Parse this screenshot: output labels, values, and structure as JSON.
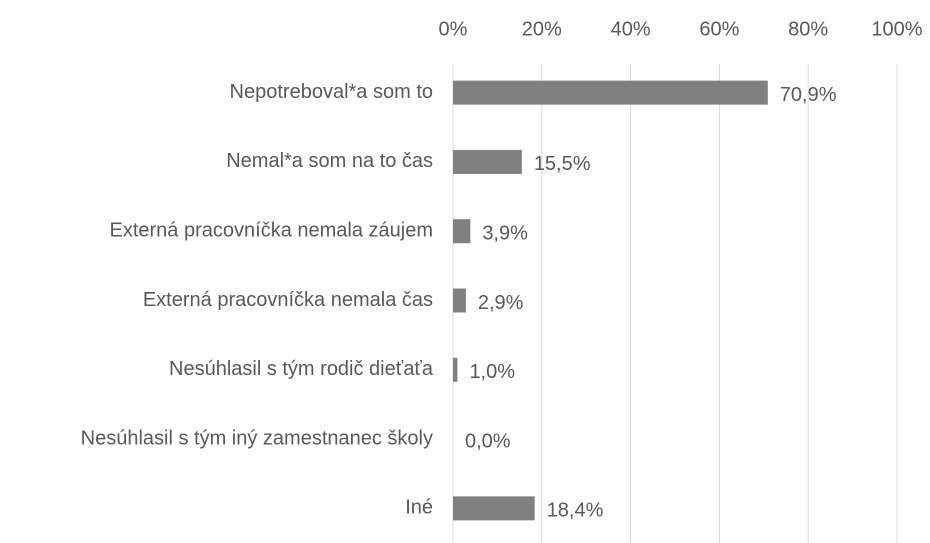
{
  "chart_data": {
    "type": "bar",
    "orientation": "horizontal",
    "categories": [
      "Nepotreboval*a som to",
      "Nemal*a som na to čas",
      "Externá pracovníčka nemala záujem",
      "Externá pracovníčka nemala čas",
      "Nesúhlasil s tým rodič dieťaťa",
      "Nesúhlasil s tým iný zamestnanec školy",
      "Iné"
    ],
    "values": [
      70.9,
      15.5,
      3.9,
      2.9,
      1.0,
      0.0,
      18.4
    ],
    "value_labels": [
      "70,9%",
      "15,5%",
      "3,9%",
      "2,9%",
      "1,0%",
      "0,0%",
      "18,4%"
    ],
    "color": "#808080",
    "xlim": [
      0,
      100
    ],
    "xticks": [
      {
        "value": 0,
        "label": "0%"
      },
      {
        "value": 20,
        "label": "20%"
      },
      {
        "value": 40,
        "label": "40%"
      },
      {
        "value": 60,
        "label": "60%"
      },
      {
        "value": 80,
        "label": "80%"
      },
      {
        "value": 100,
        "label": "100%"
      }
    ],
    "grid": true
  }
}
